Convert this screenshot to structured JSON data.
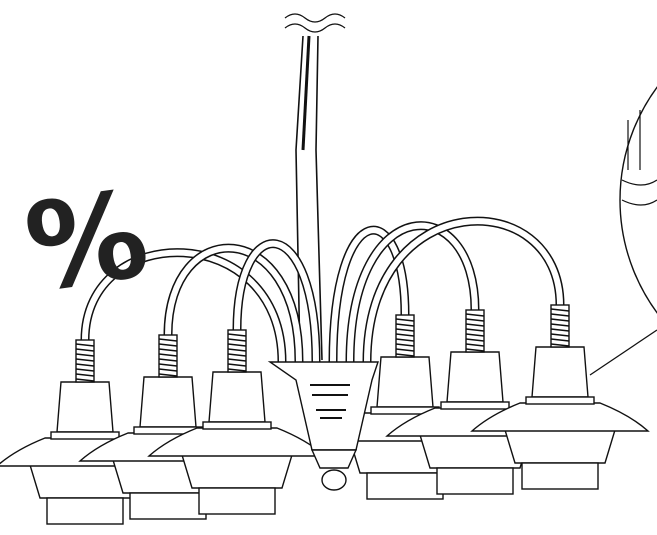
{
  "symbol": "%"
}
